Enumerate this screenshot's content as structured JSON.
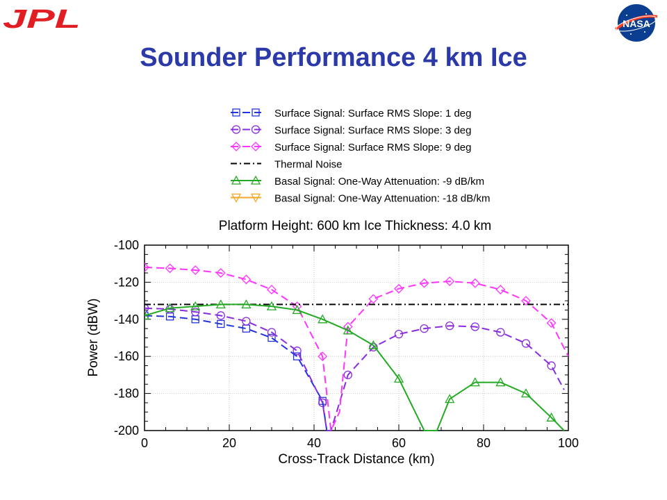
{
  "logos": {
    "left": "JPL",
    "right": "NASA"
  },
  "slide_title": "Sounder Performance 4 km Ice",
  "colors": {
    "title": "#2b3aa8",
    "jpl": "#e21e25",
    "nasa_blue": "#0b3d91",
    "nasa_red": "#fc3d21"
  },
  "chart_data": {
    "type": "line",
    "title": "Platform Height: 600 km   Ice Thickness: 4.0 km",
    "xlabel": "Cross-Track Distance (km)",
    "ylabel": "Power (dBW)",
    "xlim": [
      0,
      100
    ],
    "ylim": [
      -200,
      -100
    ],
    "xticks": [
      0,
      20,
      40,
      60,
      80,
      100
    ],
    "yticks": [
      -100,
      -120,
      -140,
      -160,
      -180,
      -200
    ],
    "legend_position": "above plot",
    "series": [
      {
        "name": "Surface Signal: Surface RMS Slope:  1 deg",
        "color": "#2233dd",
        "style": "dashed",
        "marker": "square",
        "x": [
          0,
          6,
          12,
          18,
          24,
          30,
          36,
          42,
          43
        ],
        "y": [
          -138,
          -138.5,
          -140,
          -142.5,
          -145,
          -150,
          -160,
          -184,
          -200
        ]
      },
      {
        "name": "Surface Signal: Surface RMS Slope:  3 deg",
        "color": "#8a2be2",
        "style": "dashed",
        "marker": "circle",
        "x": [
          0,
          6,
          12,
          18,
          24,
          30,
          36,
          42,
          43,
          44,
          48,
          54,
          60,
          66,
          72,
          78,
          84,
          90,
          96,
          99
        ],
        "y": [
          -134,
          -134.5,
          -136,
          -138,
          -141,
          -147,
          -157,
          -185,
          -200,
          -200,
          -170,
          -155,
          -148,
          -145,
          -143.5,
          -144,
          -147,
          -153,
          -165,
          -178
        ]
      },
      {
        "name": "Surface Signal: Surface RMS Slope:  9 deg",
        "color": "#ff33ff",
        "style": "dashed",
        "marker": "diamond",
        "x": [
          0,
          6,
          12,
          18,
          24,
          30,
          36,
          42,
          44,
          46,
          48,
          54,
          60,
          66,
          72,
          78,
          84,
          90,
          96,
          100
        ],
        "y": [
          -112,
          -112.5,
          -113.5,
          -115,
          -118.5,
          -124,
          -133,
          -160,
          -200,
          -190,
          -144,
          -129,
          -123.5,
          -120.5,
          -119.5,
          -120.5,
          -124,
          -130,
          -142,
          -160
        ]
      },
      {
        "name": "Thermal Noise",
        "color": "#000000",
        "style": "dashdot",
        "marker": "none",
        "x": [
          0,
          100
        ],
        "y": [
          -132,
          -132
        ]
      },
      {
        "name": "Basal Signal: One-Way Attenuation:  -9 dB/km",
        "color": "#22aa22",
        "style": "solid",
        "marker": "triangle-up",
        "x": [
          0,
          6,
          12,
          18,
          24,
          30,
          36,
          42,
          48,
          54,
          60,
          66,
          69,
          72,
          78,
          84,
          90,
          96,
          99
        ],
        "y": [
          -138,
          -134,
          -133,
          -132,
          -132,
          -133,
          -135,
          -140,
          -146,
          -154,
          -172,
          -200,
          -200,
          -183,
          -174,
          -174,
          -180,
          -193,
          -200
        ]
      },
      {
        "name": "Basal Signal: One-Way Attenuation: -18 dB/km",
        "color": "#f5a623",
        "style": "solid",
        "marker": "triangle-down",
        "x": [],
        "y": []
      }
    ]
  }
}
